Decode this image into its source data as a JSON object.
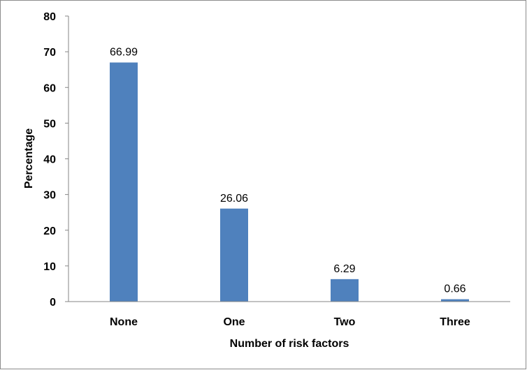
{
  "chart_data": {
    "type": "bar",
    "title": "",
    "xlabel": "Number of risk factors",
    "ylabel": "Percentage",
    "categories": [
      "None",
      "One",
      "Two",
      "Three"
    ],
    "values": [
      66.99,
      26.06,
      6.29,
      0.66
    ],
    "data_labels": [
      "66.99",
      "26.06",
      "6.29",
      "0.66"
    ],
    "ylim": [
      0,
      80
    ],
    "yticks": [
      "0",
      "10",
      "20",
      "30",
      "40",
      "50",
      "60",
      "70",
      "80"
    ],
    "grid": false,
    "legend": "none",
    "bar_color": "#4f81bd"
  }
}
